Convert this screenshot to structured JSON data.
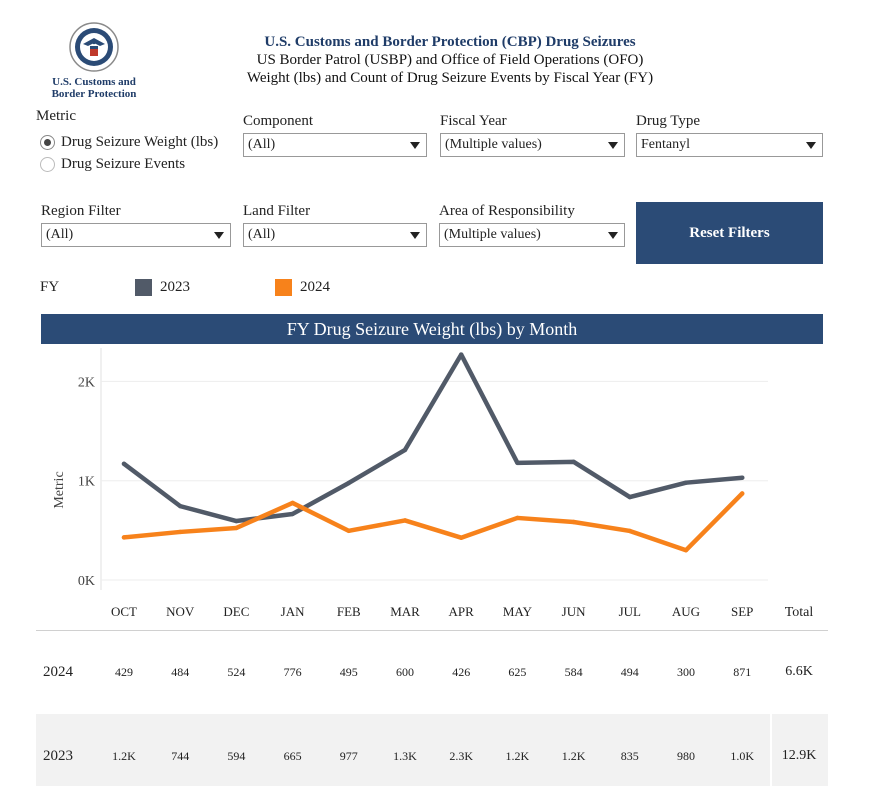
{
  "logo": {
    "line1": "U.S. Customs and",
    "line2": "Border Protection"
  },
  "header": {
    "title": "U.S. Customs and Border Protection (CBP) Drug Seizures",
    "subtitle1": "US Border Patrol (USBP) and Office of Field Operations (OFO)",
    "subtitle2": "Weight (lbs) and Count of Drug Seizure Events by Fiscal Year (FY)"
  },
  "metric": {
    "label": "Metric",
    "options": [
      "Drug Seizure Weight (lbs)",
      "Drug Seizure Events"
    ],
    "selected": "Drug Seizure Weight (lbs)"
  },
  "filters": {
    "component": {
      "label": "Component",
      "value": "(All)"
    },
    "fiscal_year": {
      "label": "Fiscal Year",
      "value": "(Multiple values)"
    },
    "drug_type": {
      "label": "Drug Type",
      "value": "Fentanyl"
    },
    "region": {
      "label": "Region Filter",
      "value": "(All)"
    },
    "land": {
      "label": "Land Filter",
      "value": "(All)"
    },
    "aor": {
      "label": "Area of Responsibility",
      "value": "(Multiple values)"
    }
  },
  "reset_label": "Reset Filters",
  "legend": {
    "label": "FY",
    "items": [
      {
        "name": "2023",
        "color": "#515a68"
      },
      {
        "name": "2024",
        "color": "#f7821b"
      }
    ]
  },
  "chart_title": "FY Drug Seizure Weight (lbs) by Month",
  "chart_data": {
    "type": "line",
    "ylabel": "Metric",
    "yticks": [
      "0K",
      "1K",
      "2K"
    ],
    "ylim": [
      0,
      2500
    ],
    "categories": [
      "OCT",
      "NOV",
      "DEC",
      "JAN",
      "FEB",
      "MAR",
      "APR",
      "MAY",
      "JUN",
      "JUL",
      "AUG",
      "SEP"
    ],
    "series": [
      {
        "name": "2023",
        "color": "#515a68",
        "values": [
          1170,
          744,
          594,
          665,
          977,
          1310,
          2270,
          1180,
          1190,
          835,
          980,
          1030
        ]
      },
      {
        "name": "2024",
        "color": "#f7821b",
        "values": [
          429,
          484,
          524,
          776,
          495,
          600,
          426,
          625,
          584,
          494,
          300,
          871
        ]
      }
    ]
  },
  "table": {
    "total_header": "Total",
    "rows": [
      {
        "year": "2024",
        "cells": [
          "429",
          "484",
          "524",
          "776",
          "495",
          "600",
          "426",
          "625",
          "584",
          "494",
          "300",
          "871"
        ],
        "total": "6.6K"
      },
      {
        "year": "2023",
        "cells": [
          "1.2K",
          "744",
          "594",
          "665",
          "977",
          "1.3K",
          "2.3K",
          "1.2K",
          "1.2K",
          "835",
          "980",
          "1.0K"
        ],
        "total": "12.9K"
      }
    ]
  }
}
